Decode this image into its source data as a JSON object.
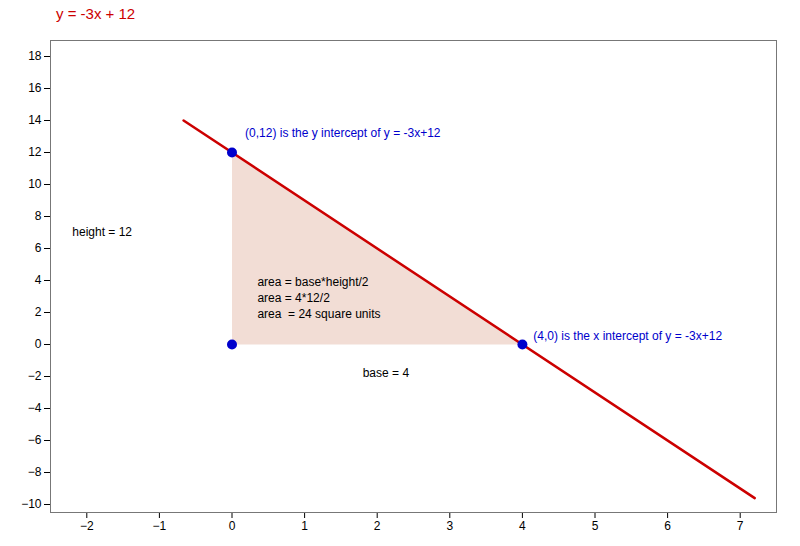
{
  "chart_data": {
    "type": "line",
    "legend": "top left",
    "grid": false,
    "xlim": [
      -2.5,
      7.5
    ],
    "ylim": [
      -10.5,
      19.0
    ],
    "xticks": [
      -2,
      -1,
      0,
      1,
      2,
      3,
      4,
      5,
      6,
      7
    ],
    "yticks": [
      -10,
      -8,
      -6,
      -4,
      -2,
      0,
      2,
      4,
      6,
      8,
      10,
      12,
      14,
      16,
      18
    ],
    "series": [
      {
        "type": "area",
        "color": "#f2ddd5",
        "x": [
          0,
          4,
          0
        ],
        "values": [
          0,
          0,
          12
        ]
      },
      {
        "type": "line",
        "name": "y = -3x + 12",
        "color": "#cc0000",
        "x": [
          -0.667,
          7.2
        ],
        "values": [
          14.001,
          -9.6
        ]
      },
      {
        "type": "scatter",
        "color": "#0000cc",
        "x": [
          0,
          4,
          0
        ],
        "values": [
          12,
          0,
          0
        ]
      }
    ],
    "annotations": [
      {
        "text": "(0,12) is the y intercept of y = -3x+12",
        "x": 0.18,
        "y": 13.2,
        "color": "#0000cc"
      },
      {
        "text": "(4,0) is the x intercept of y = -3x+12",
        "x": 4.15,
        "y": 0.55,
        "color": "#0000cc"
      },
      {
        "text": "height = 12",
        "x": -2.2,
        "y": 7.0,
        "color": "#000000"
      },
      {
        "text": "base = 4",
        "x": 1.8,
        "y": -1.8,
        "color": "#000000"
      },
      {
        "text": "area = base*height/2",
        "x": 0.35,
        "y": 3.9,
        "color": "#000000"
      },
      {
        "text": "area = 4*12/2",
        "x": 0.35,
        "y": 2.9,
        "color": "#000000"
      },
      {
        "text": "area  = 24 square units",
        "x": 0.35,
        "y": 1.9,
        "color": "#000000"
      }
    ]
  }
}
